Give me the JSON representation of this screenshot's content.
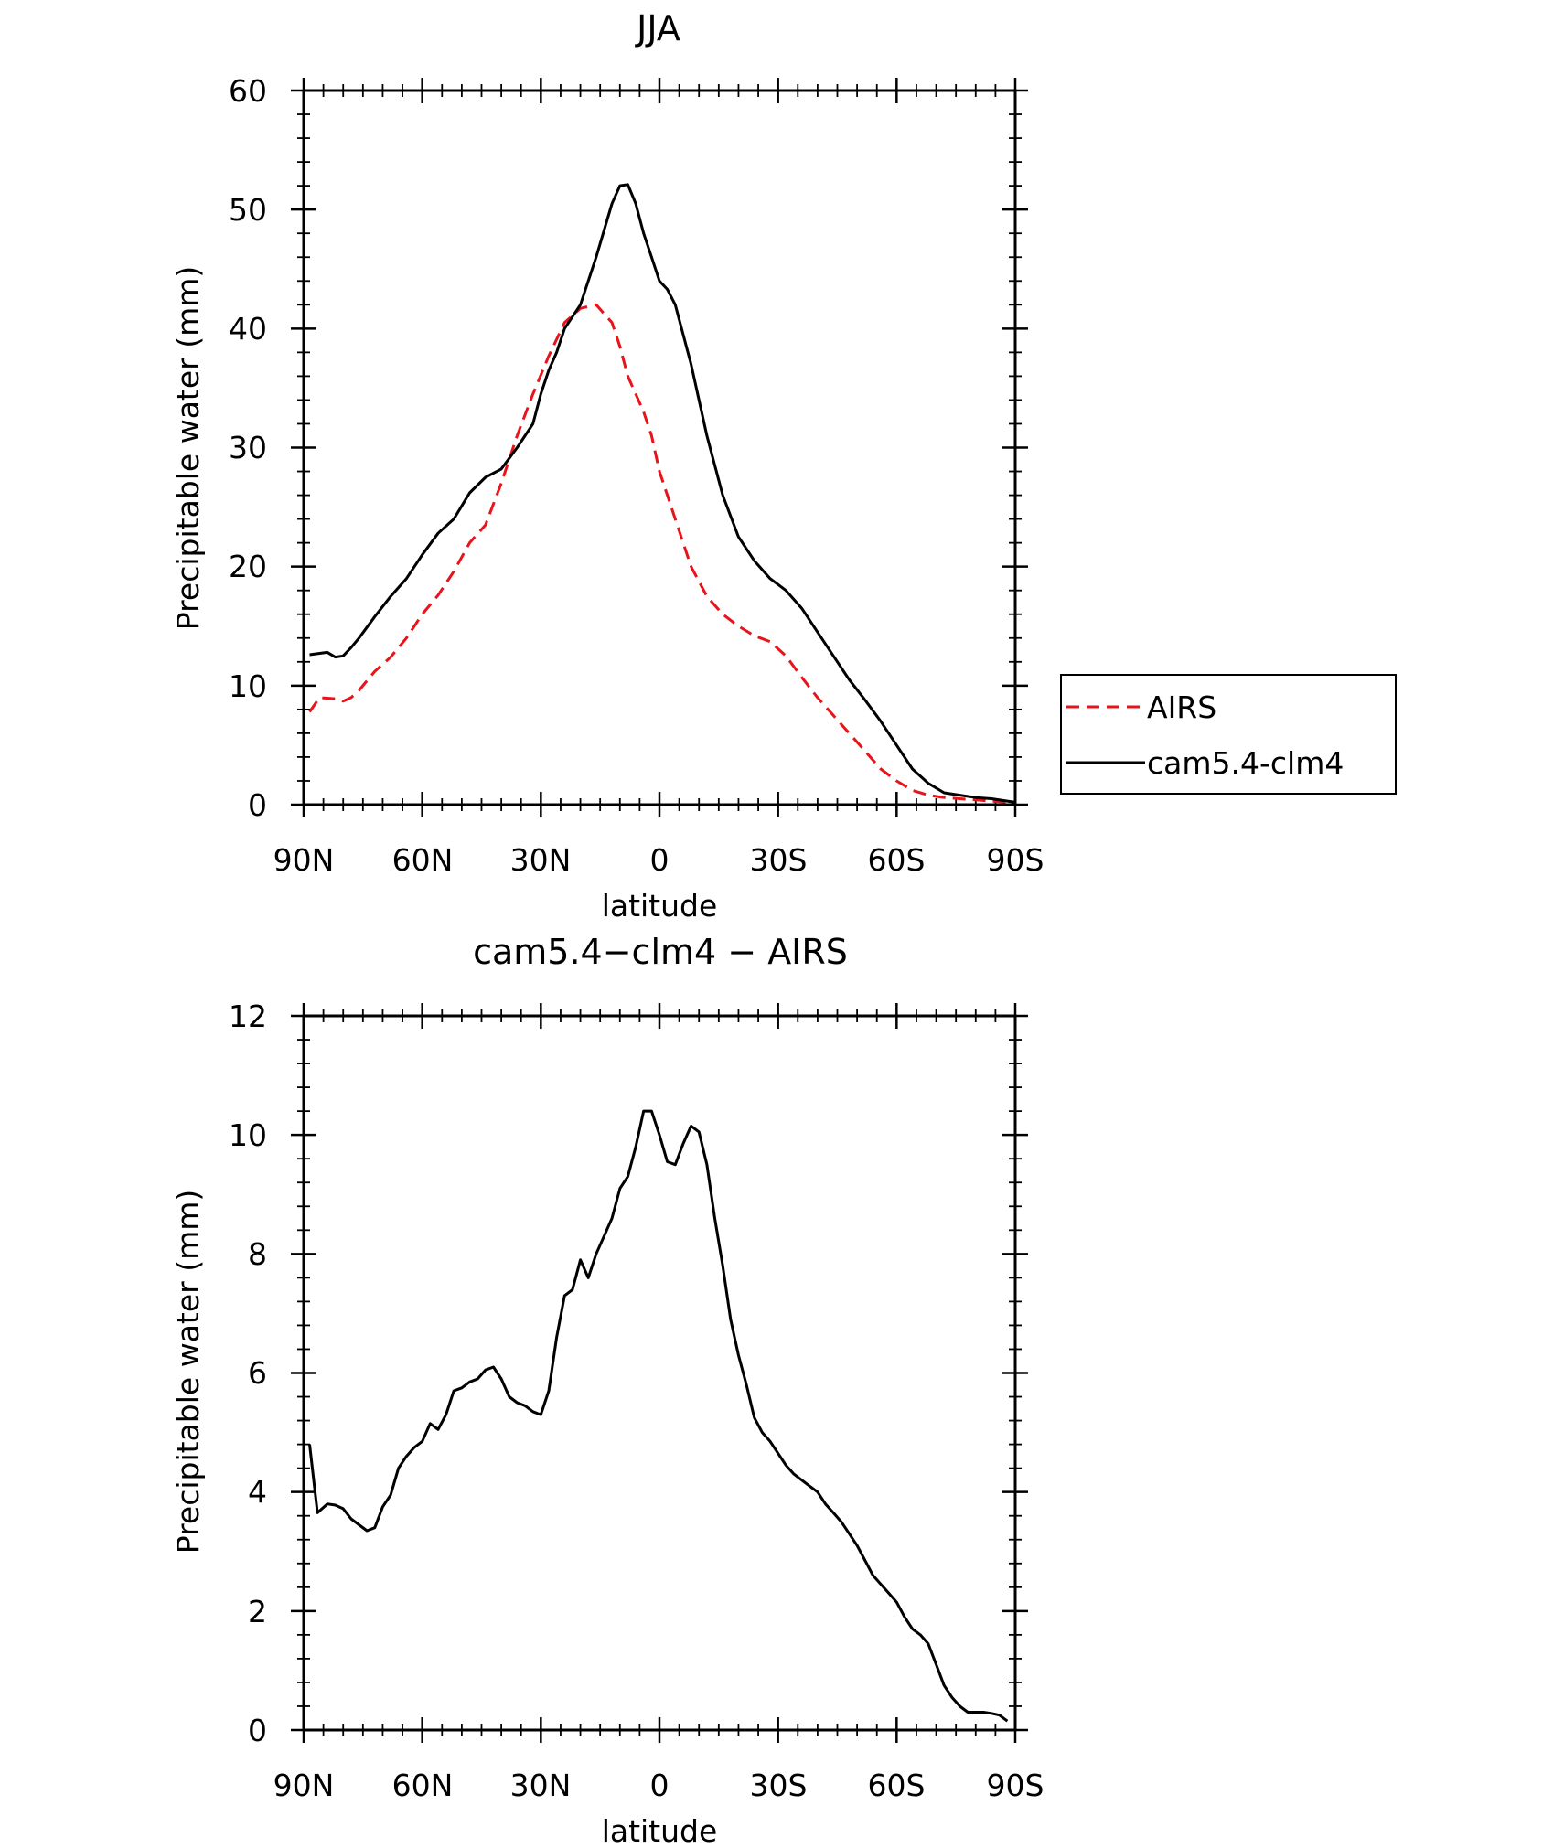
{
  "chart_data": [
    {
      "type": "line",
      "title": "JJA",
      "xlabel": "latitude",
      "ylabel": "Precipitable water (mm)",
      "xlim": [
        90,
        -90
      ],
      "ylim": [
        0,
        60
      ],
      "xticks": [
        {
          "value": 90,
          "label": "90N"
        },
        {
          "value": 60,
          "label": "60N"
        },
        {
          "value": 30,
          "label": "30N"
        },
        {
          "value": 0,
          "label": "0"
        },
        {
          "value": -30,
          "label": "30S"
        },
        {
          "value": -60,
          "label": "60S"
        },
        {
          "value": -90,
          "label": "90S"
        }
      ],
      "yticks": [
        {
          "value": 0,
          "label": "0"
        },
        {
          "value": 10,
          "label": "10"
        },
        {
          "value": 20,
          "label": "20"
        },
        {
          "value": 30,
          "label": "30"
        },
        {
          "value": 40,
          "label": "40"
        },
        {
          "value": 50,
          "label": "50"
        },
        {
          "value": 60,
          "label": "60"
        }
      ],
      "legend": {
        "position": "right",
        "entries": [
          {
            "name": "AIRS",
            "color": "#e8141b",
            "dash": "dashed"
          },
          {
            "name": "cam5.4-clm4",
            "color": "#000000",
            "dash": "solid"
          }
        ]
      },
      "series": [
        {
          "name": "AIRS",
          "color": "#e8141b",
          "dash": "dashed",
          "x": [
            88.5,
            86,
            82,
            80,
            78,
            76,
            72,
            68,
            64,
            60,
            56,
            52,
            48,
            44,
            40,
            36,
            32,
            28,
            24,
            20,
            16,
            12,
            10,
            8,
            6,
            4,
            2,
            0,
            -4,
            -8,
            -12,
            -16,
            -20,
            -24,
            -28,
            -32,
            -36,
            -40,
            -44,
            -48,
            -52,
            -56,
            -60,
            -64,
            -68,
            -72,
            -76,
            -80,
            -84,
            -88,
            -90
          ],
          "values": [
            7.8,
            9,
            8.9,
            8.7,
            9,
            9.6,
            11.2,
            12.4,
            14,
            16,
            17.6,
            19.6,
            22,
            23.5,
            27,
            31,
            34.5,
            37.7,
            40.5,
            41.7,
            42,
            40.5,
            38.5,
            36,
            34.5,
            33,
            31,
            28,
            24,
            20,
            17.5,
            16,
            15,
            14.2,
            13.7,
            12.5,
            10.7,
            9,
            7.5,
            6,
            4.5,
            3,
            2,
            1.2,
            0.8,
            0.6,
            0.5,
            0.4,
            0.3,
            0.2,
            0.2
          ]
        },
        {
          "name": "cam5.4-clm4",
          "color": "#000000",
          "dash": "solid",
          "x": [
            88.5,
            84,
            82,
            80,
            78,
            76,
            72,
            68,
            64,
            60,
            56,
            52,
            48,
            44,
            40,
            36,
            32,
            30,
            28,
            26,
            24,
            22,
            20,
            16,
            12,
            10,
            8,
            6,
            4,
            2,
            0,
            -2,
            -4,
            -8,
            -12,
            -16,
            -20,
            -24,
            -28,
            -32,
            -36,
            -40,
            -44,
            -48,
            -52,
            -56,
            -60,
            -64,
            -68,
            -72,
            -76,
            -80,
            -84,
            -88,
            -90
          ],
          "values": [
            12.6,
            12.8,
            12.4,
            12.5,
            13.2,
            14,
            15.8,
            17.5,
            19,
            21,
            22.8,
            24,
            26.2,
            27.5,
            28.2,
            30,
            32,
            34.5,
            36.5,
            38,
            40,
            41,
            42,
            46,
            50.5,
            52,
            52.1,
            50.5,
            48,
            46,
            44,
            43.3,
            42,
            37,
            31,
            26,
            22.5,
            20.5,
            19,
            18,
            16.5,
            14.5,
            12.5,
            10.5,
            8.8,
            7,
            5,
            3,
            1.8,
            1,
            0.8,
            0.6,
            0.5,
            0.3,
            0.2
          ]
        }
      ]
    },
    {
      "type": "line",
      "title": "cam5.4−clm4 − AIRS",
      "xlabel": "latitude",
      "ylabel": "Precipitable water (mm)",
      "xlim": [
        90,
        -90
      ],
      "ylim": [
        0,
        12
      ],
      "xticks": [
        {
          "value": 90,
          "label": "90N"
        },
        {
          "value": 60,
          "label": "60N"
        },
        {
          "value": 30,
          "label": "30N"
        },
        {
          "value": 0,
          "label": "0"
        },
        {
          "value": -30,
          "label": "30S"
        },
        {
          "value": -60,
          "label": "60S"
        },
        {
          "value": -90,
          "label": "90S"
        }
      ],
      "yticks": [
        {
          "value": 0,
          "label": "0"
        },
        {
          "value": 2,
          "label": "2"
        },
        {
          "value": 4,
          "label": "4"
        },
        {
          "value": 6,
          "label": "6"
        },
        {
          "value": 8,
          "label": "8"
        },
        {
          "value": 10,
          "label": "10"
        },
        {
          "value": 12,
          "label": "12"
        }
      ],
      "series": [
        {
          "name": "cam5.4-clm4 - AIRS",
          "color": "#000000",
          "dash": "solid",
          "x": [
            88.5,
            86.5,
            84,
            82,
            80,
            78,
            76,
            74,
            72,
            70,
            68,
            66,
            64,
            62,
            60,
            58,
            56,
            54,
            52,
            50,
            48,
            46,
            44,
            42,
            40,
            38,
            36,
            34,
            32,
            30,
            28,
            26,
            24,
            22,
            20,
            18,
            16,
            14,
            12,
            10,
            8,
            6,
            4,
            2,
            0,
            -2,
            -4,
            -6,
            -8,
            -10,
            -12,
            -14,
            -16,
            -18,
            -20,
            -22,
            -24,
            -26,
            -28,
            -30,
            -32,
            -34,
            -36,
            -38,
            -40,
            -42,
            -44,
            -46,
            -48,
            -50,
            -52,
            -54,
            -56,
            -58,
            -60,
            -62,
            -64,
            -66,
            -68,
            -70,
            -72,
            -74,
            -76,
            -78,
            -80,
            -82,
            -84,
            -86,
            -88
          ],
          "values": [
            4.8,
            3.65,
            3.8,
            3.78,
            3.72,
            3.55,
            3.45,
            3.35,
            3.4,
            3.75,
            3.95,
            4.4,
            4.6,
            4.75,
            4.85,
            5.15,
            5.05,
            5.3,
            5.7,
            5.75,
            5.85,
            5.9,
            6.05,
            6.1,
            5.9,
            5.6,
            5.5,
            5.45,
            5.35,
            5.3,
            5.7,
            6.6,
            7.3,
            7.4,
            7.9,
            7.6,
            8.0,
            8.3,
            8.6,
            9.1,
            9.3,
            9.8,
            10.4,
            10.4,
            10.0,
            9.55,
            9.5,
            9.85,
            10.15,
            10.05,
            9.5,
            8.6,
            7.8,
            6.9,
            6.3,
            5.8,
            5.25,
            5.0,
            4.85,
            4.65,
            4.45,
            4.3,
            4.2,
            4.1,
            4.0,
            3.8,
            3.65,
            3.5,
            3.3,
            3.1,
            2.85,
            2.6,
            2.45,
            2.3,
            2.15,
            1.9,
            1.7,
            1.6,
            1.45,
            1.1,
            0.75,
            0.55,
            0.4,
            0.3,
            0.3,
            0.3,
            0.28,
            0.25,
            0.15
          ]
        }
      ]
    }
  ]
}
